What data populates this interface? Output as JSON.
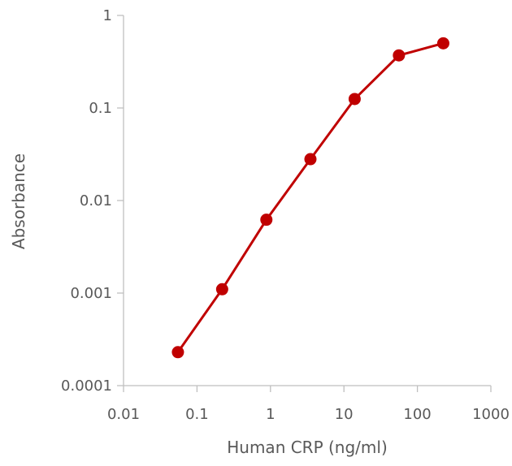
{
  "chart_data": {
    "type": "line",
    "title": "",
    "xlabel": "Human CRP (ng/ml)",
    "ylabel": "Absorbance",
    "x_scale": "log",
    "y_scale": "log",
    "xlim": [
      0.01,
      1000
    ],
    "ylim": [
      0.0001,
      1
    ],
    "x_ticks": [
      0.01,
      0.1,
      1,
      10,
      100,
      1000
    ],
    "x_tick_labels": [
      "0.01",
      "0.1",
      "1",
      "10",
      "100",
      "1000"
    ],
    "y_ticks": [
      0.0001,
      0.001,
      0.01,
      0.1,
      1
    ],
    "y_tick_labels": [
      "0.0001",
      "0.001",
      "0.01",
      "0.1",
      "1"
    ],
    "grid": false,
    "legend": "none",
    "series": [
      {
        "color": "#c00000",
        "x": [
          0.055,
          0.22,
          0.88,
          3.5,
          14,
          56,
          225
        ],
        "y": [
          0.00023,
          0.0011,
          0.0062,
          0.028,
          0.125,
          0.37,
          0.5
        ]
      }
    ]
  }
}
